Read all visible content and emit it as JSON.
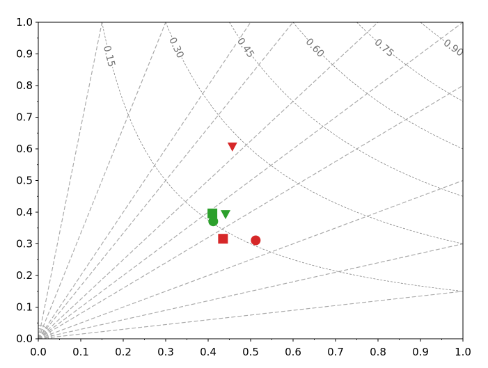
{
  "chart_data": {
    "type": "scatter",
    "title": "",
    "xlabel": "",
    "ylabel": "",
    "xlim": [
      0.0,
      1.0
    ],
    "ylim": [
      0.0,
      1.0
    ],
    "grid": false,
    "legend": "none",
    "x_ticks": [
      "0.0",
      "0.1",
      "0.2",
      "0.3",
      "0.4",
      "0.5",
      "0.6",
      "0.7",
      "0.8",
      "0.9",
      "1.0"
    ],
    "y_ticks": [
      "0.0",
      "0.1",
      "0.2",
      "0.3",
      "0.4",
      "0.5",
      "0.6",
      "0.7",
      "0.8",
      "0.9",
      "1.0"
    ],
    "radial_lines": {
      "origin": [
        0.0,
        0.0
      ],
      "slopes": [
        0.15,
        0.3,
        0.5,
        0.8,
        1.0,
        1.25,
        1.667,
        2.0,
        3.333,
        6.667
      ],
      "color": "#aaaaaa"
    },
    "contours": {
      "function": "x * y",
      "levels": [
        0.15,
        0.3,
        0.45,
        0.6,
        0.75,
        0.9
      ],
      "labels": [
        "0.15",
        "0.30",
        "0.45",
        "0.60",
        "0.75",
        "0.90"
      ],
      "color": "#808080"
    },
    "series": [
      {
        "marker": "triangle-down",
        "color": "#d62728",
        "points": [
          [
            0.457,
            0.607
          ]
        ]
      },
      {
        "marker": "circle",
        "color": "#d62728",
        "points": [
          [
            0.512,
            0.311
          ]
        ]
      },
      {
        "marker": "square",
        "color": "#d62728",
        "points": [
          [
            0.435,
            0.316
          ]
        ]
      },
      {
        "marker": "square",
        "color": "#2ca02c",
        "points": [
          [
            0.41,
            0.396
          ]
        ]
      },
      {
        "marker": "triangle-down",
        "color": "#2ca02c",
        "points": [
          [
            0.441,
            0.393
          ]
        ]
      },
      {
        "marker": "circle",
        "color": "#2ca02c",
        "points": [
          [
            0.412,
            0.371
          ]
        ]
      }
    ]
  }
}
